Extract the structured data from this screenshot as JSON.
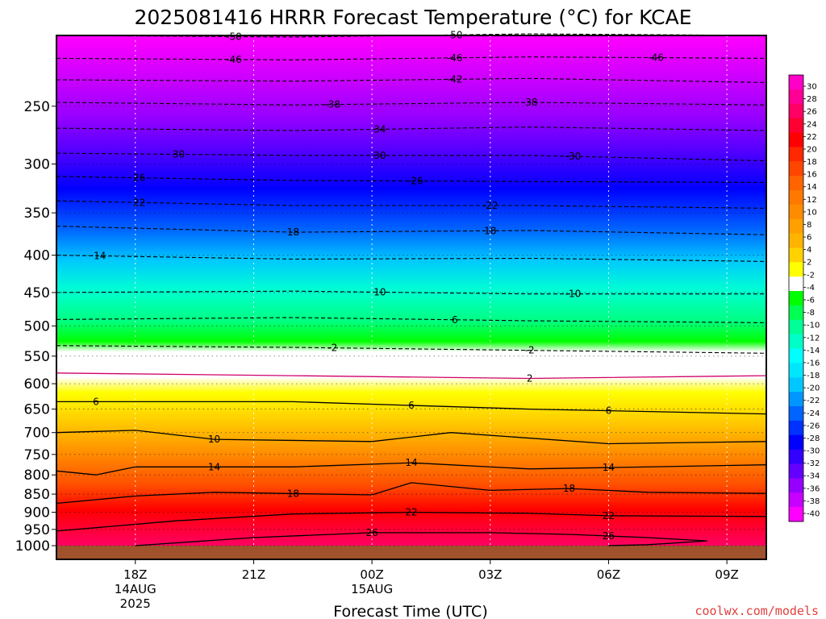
{
  "title": "2025081416 HRRR Forecast Temperature (°C) for KCAE",
  "credit": "coolwx.com/models",
  "chart_data": {
    "type": "heatmap",
    "title": "2025081416 HRRR Forecast Temperature (°C) for KCAE",
    "xlabel": "Forecast Time (UTC)",
    "ylabel": "",
    "x_ticks": [
      {
        "label": "18Z",
        "sub": [
          "14AUG",
          "2025"
        ],
        "hour": 2
      },
      {
        "label": "21Z",
        "sub": [],
        "hour": 5
      },
      {
        "label": "00Z",
        "sub": [
          "15AUG"
        ],
        "hour": 8
      },
      {
        "label": "03Z",
        "sub": [],
        "hour": 11
      },
      {
        "label": "06Z",
        "sub": [],
        "hour": 14
      },
      {
        "label": "09Z",
        "sub": [],
        "hour": 17
      }
    ],
    "x_range_hours": [
      0,
      18
    ],
    "y_axis": {
      "scale": "log-pressure",
      "units": "hPa",
      "range": [
        1000,
        200
      ],
      "ticks": [
        250,
        300,
        350,
        400,
        450,
        500,
        550,
        600,
        650,
        700,
        750,
        800,
        850,
        900,
        950,
        1000
      ]
    },
    "grid": true,
    "colorbar": {
      "labels": [
        30,
        28,
        26,
        24,
        22,
        20,
        18,
        16,
        14,
        12,
        10,
        8,
        6,
        4,
        2,
        -2,
        -4,
        -6,
        -8,
        -10,
        -12,
        -14,
        -16,
        -18,
        -20,
        -22,
        -24,
        -26,
        -28,
        -30,
        -32,
        -34,
        -36,
        -38,
        -40
      ],
      "colors": [
        "#ff00c8",
        "#ff0096",
        "#ff0064",
        "#ff0032",
        "#ff0000",
        "#ff2800",
        "#ff4600",
        "#ff6400",
        "#ff7800",
        "#ff8c00",
        "#ffa000",
        "#ffb400",
        "#ffd200",
        "#ffff00",
        "#ffffff",
        "#00ff00",
        "#00ff50",
        "#00ff96",
        "#00ffc8",
        "#00ffff",
        "#00e6ff",
        "#00c8ff",
        "#0096ff",
        "#0064ff",
        "#0032ff",
        "#0000ff",
        "#3200ff",
        "#6400ff",
        "#9600ff",
        "#c800ff",
        "#ff00ff"
      ]
    },
    "contours": [
      {
        "value": -50,
        "levels": [
          [
            0,
            200
          ],
          [
            6,
            201
          ],
          [
            12,
            199
          ],
          [
            18,
            200
          ]
        ],
        "labels": [
          {
            "text": "-50",
            "hour": 4.5
          },
          {
            "text": "-50",
            "hour": 10.1
          }
        ]
      },
      {
        "value": -46,
        "levels": [
          [
            0,
            215
          ],
          [
            6,
            216
          ],
          [
            12,
            214
          ],
          [
            18,
            215
          ]
        ],
        "labels": [
          {
            "text": "-46",
            "hour": 4.5
          },
          {
            "text": "-46",
            "hour": 10.1
          },
          {
            "text": "-46",
            "hour": 15.2
          }
        ]
      },
      {
        "value": -42,
        "levels": [
          [
            0,
            230
          ],
          [
            6,
            231
          ],
          [
            12,
            229
          ],
          [
            18,
            232
          ]
        ],
        "labels": [
          {
            "text": "-42",
            "hour": 10.1
          }
        ]
      },
      {
        "value": -38,
        "levels": [
          [
            0,
            247
          ],
          [
            6,
            249
          ],
          [
            12,
            247
          ],
          [
            18,
            249
          ]
        ],
        "labels": [
          {
            "text": "-38",
            "hour": 7.0
          },
          {
            "text": "-38",
            "hour": 12.0
          }
        ]
      },
      {
        "value": -34,
        "levels": [
          [
            0,
            268
          ],
          [
            6,
            270
          ],
          [
            12,
            267
          ],
          [
            18,
            270
          ]
        ],
        "labels": [
          {
            "text": "34",
            "hour": 8.2
          }
        ]
      },
      {
        "value": -30,
        "levels": [
          [
            0,
            290
          ],
          [
            6,
            292
          ],
          [
            12,
            292
          ],
          [
            18,
            297
          ]
        ],
        "labels": [
          {
            "text": "30",
            "hour": 3.1
          },
          {
            "text": "30",
            "hour": 8.2
          },
          {
            "text": "-30",
            "hour": 13.1
          }
        ]
      },
      {
        "value": -26,
        "levels": [
          [
            0,
            312
          ],
          [
            6,
            316
          ],
          [
            12,
            317
          ],
          [
            18,
            318
          ]
        ],
        "labels": [
          {
            "text": "26",
            "hour": 2.1
          },
          {
            "text": "-26",
            "hour": 9.1
          }
        ]
      },
      {
        "value": -22,
        "levels": [
          [
            0,
            337
          ],
          [
            6,
            342
          ],
          [
            12,
            342
          ],
          [
            18,
            345
          ]
        ],
        "labels": [
          {
            "text": "22",
            "hour": 2.1
          },
          {
            "text": "-22",
            "hour": 11.0
          }
        ]
      },
      {
        "value": -18,
        "levels": [
          [
            0,
            365
          ],
          [
            6,
            372
          ],
          [
            12,
            370
          ],
          [
            18,
            375
          ]
        ],
        "labels": [
          {
            "text": "18",
            "hour": 6.0
          },
          {
            "text": "18",
            "hour": 11.0
          }
        ]
      },
      {
        "value": -14,
        "levels": [
          [
            0,
            400
          ],
          [
            6,
            405
          ],
          [
            12,
            404
          ],
          [
            18,
            408
          ]
        ],
        "labels": [
          {
            "text": "14",
            "hour": 1.1
          }
        ]
      },
      {
        "value": -10,
        "levels": [
          [
            0,
            450
          ],
          [
            6,
            448
          ],
          [
            12,
            452
          ],
          [
            18,
            452
          ]
        ],
        "labels": [
          {
            "text": "10",
            "hour": 8.2
          },
          {
            "text": "-10",
            "hour": 13.1
          }
        ]
      },
      {
        "value": -6,
        "levels": [
          [
            0,
            490
          ],
          [
            6,
            487
          ],
          [
            12,
            492
          ],
          [
            18,
            495
          ]
        ],
        "labels": [
          {
            "text": "6",
            "hour": 10.1
          }
        ]
      },
      {
        "value": -2,
        "levels": [
          [
            0,
            532
          ],
          [
            6,
            535
          ],
          [
            12,
            540
          ],
          [
            18,
            545
          ]
        ],
        "labels": [
          {
            "text": "-2",
            "hour": 7.0
          },
          {
            "text": "-2",
            "hour": 12.0
          }
        ]
      },
      {
        "value": 2,
        "levels": [
          [
            0,
            580
          ],
          [
            6,
            585
          ],
          [
            12,
            590
          ],
          [
            18,
            585
          ]
        ],
        "labels": [
          {
            "text": "2",
            "hour": 12.0
          }
        ]
      },
      {
        "value": 6,
        "levels": [
          [
            0,
            635
          ],
          [
            6,
            635
          ],
          [
            12,
            650
          ],
          [
            18,
            660
          ]
        ],
        "labels": [
          {
            "text": "6",
            "hour": 1.0
          },
          {
            "text": "6",
            "hour": 9.0
          },
          {
            "text": "6",
            "hour": 14.0
          }
        ]
      },
      {
        "value": 10,
        "levels": [
          [
            0,
            700
          ],
          [
            2,
            695
          ],
          [
            4,
            715
          ],
          [
            8,
            720
          ],
          [
            10,
            700
          ],
          [
            14,
            725
          ],
          [
            18,
            720
          ]
        ],
        "labels": [
          {
            "text": "10",
            "hour": 4.0
          }
        ]
      },
      {
        "value": 14,
        "levels": [
          [
            0,
            790
          ],
          [
            1,
            800
          ],
          [
            2,
            780
          ],
          [
            6,
            780
          ],
          [
            9,
            770
          ],
          [
            12,
            785
          ],
          [
            18,
            775
          ]
        ],
        "labels": [
          {
            "text": "14",
            "hour": 4.0
          },
          {
            "text": "14",
            "hour": 9.0
          },
          {
            "text": "14",
            "hour": 14.0
          }
        ]
      },
      {
        "value": 18,
        "levels": [
          [
            0,
            875
          ],
          [
            2,
            855
          ],
          [
            4,
            845
          ],
          [
            8,
            852
          ],
          [
            9,
            820
          ],
          [
            11,
            840
          ],
          [
            13,
            835
          ],
          [
            15,
            845
          ],
          [
            18,
            848
          ]
        ],
        "labels": [
          {
            "text": "18",
            "hour": 6.0
          },
          {
            "text": "18",
            "hour": 13.0
          }
        ]
      },
      {
        "value": 22,
        "levels": [
          [
            0,
            955
          ],
          [
            3,
            925
          ],
          [
            6,
            905
          ],
          [
            9,
            900
          ],
          [
            12,
            903
          ],
          [
            14,
            910
          ],
          [
            18,
            912
          ]
        ],
        "labels": [
          {
            "text": "22",
            "hour": 9.0
          },
          {
            "text": "22",
            "hour": 14.0
          }
        ]
      },
      {
        "value": 26,
        "levels": [
          [
            2,
            1000
          ],
          [
            5,
            975
          ],
          [
            8,
            960
          ],
          [
            11,
            960
          ],
          [
            13,
            965
          ],
          [
            15,
            975
          ],
          [
            16.5,
            985
          ],
          [
            15,
            997
          ],
          [
            14,
            1000
          ]
        ],
        "labels": [
          {
            "text": "26",
            "hour": 8.0
          },
          {
            "text": "26",
            "hour": 14.0
          }
        ]
      }
    ]
  }
}
